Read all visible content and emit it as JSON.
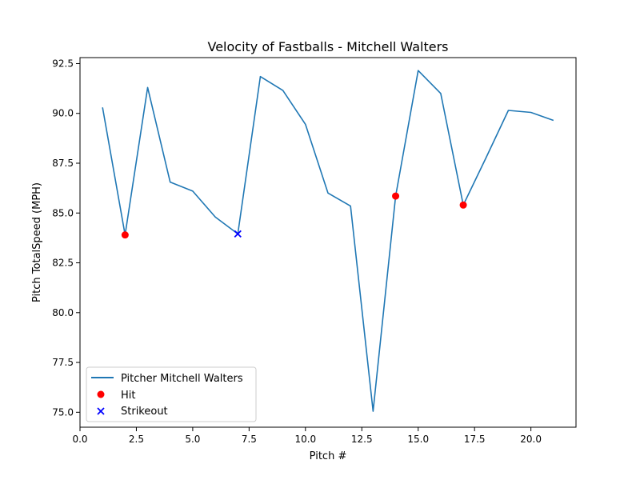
{
  "chart_data": {
    "type": "line",
    "title": "Velocity of Fastballs - Mitchell Walters",
    "xlabel": "Pitch #",
    "ylabel": "Pitch TotalSpeed (MPH)",
    "xlim": [
      0,
      22
    ],
    "ylim": [
      74.25,
      92.8
    ],
    "xticks": [
      0,
      2.5,
      5,
      7.5,
      10,
      12.5,
      15,
      17.5,
      20
    ],
    "xtick_labels": [
      "0.0",
      "2.5",
      "5.0",
      "7.5",
      "10.0",
      "12.5",
      "15.0",
      "17.5",
      "20.0"
    ],
    "yticks": [
      75,
      77.5,
      80,
      82.5,
      85,
      87.5,
      90,
      92.5
    ],
    "ytick_labels": [
      "75.0",
      "77.5",
      "80.0",
      "82.5",
      "85.0",
      "87.5",
      "90.0",
      "92.5"
    ],
    "grid": false,
    "legend": {
      "position": "lower-left"
    },
    "series": [
      {
        "name": "Pitcher Mitchell Walters",
        "kind": "line",
        "color": "#1f77b4",
        "x": [
          1,
          2,
          3,
          4,
          5,
          6,
          7,
          8,
          9,
          10,
          11,
          12,
          13,
          14,
          15,
          16,
          17,
          18,
          19,
          20,
          21
        ],
        "y": [
          90.3,
          83.9,
          91.3,
          86.55,
          86.1,
          84.8,
          83.95,
          91.85,
          91.15,
          89.45,
          86.0,
          85.35,
          75.05,
          85.85,
          92.15,
          91.0,
          85.4,
          87.75,
          90.15,
          90.05,
          89.65
        ]
      },
      {
        "name": "Hit",
        "kind": "scatter",
        "marker": "circle",
        "color": "#ff0000",
        "x": [
          2,
          14,
          17
        ],
        "y": [
          83.9,
          85.85,
          85.4
        ]
      },
      {
        "name": "Strikeout",
        "kind": "scatter",
        "marker": "x",
        "color": "#0000ff",
        "x": [
          7
        ],
        "y": [
          83.95
        ]
      }
    ]
  }
}
